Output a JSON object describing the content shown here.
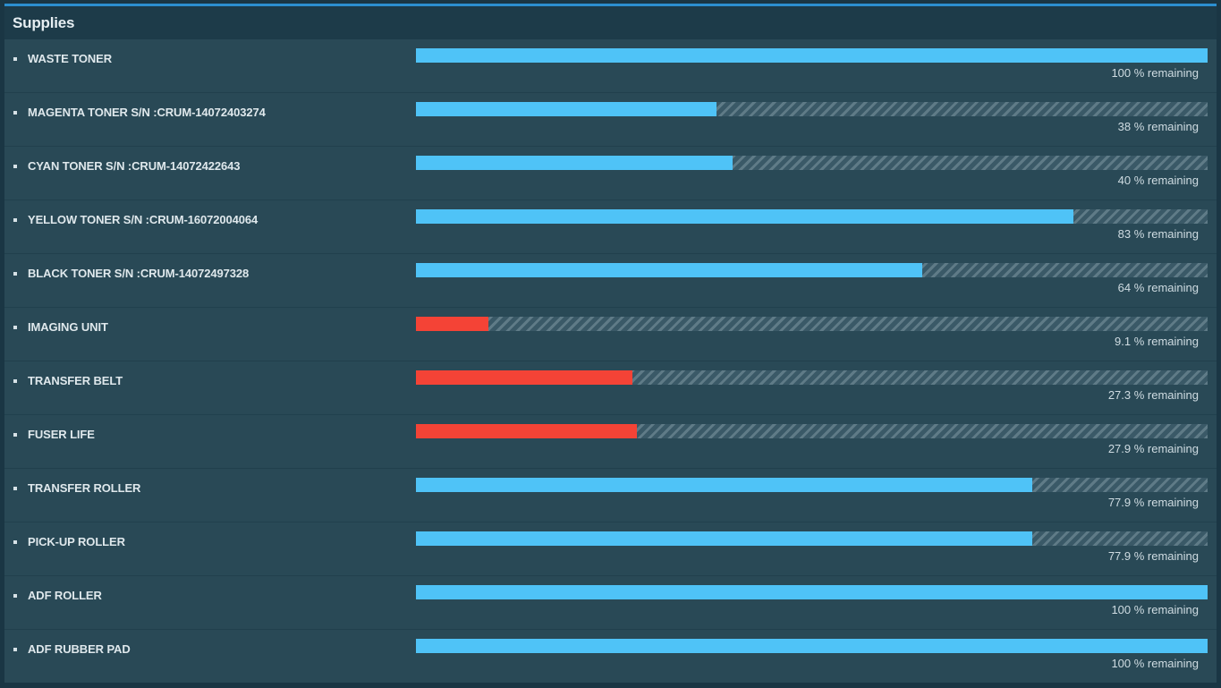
{
  "panel": {
    "title": "Supplies"
  },
  "colors": {
    "normal_fill": "#4fc3f7",
    "low_fill": "#f44336",
    "panel_bg": "#294956",
    "header_bg": "#1d3b49",
    "accent_border": "#2c8fd0"
  },
  "supplies": [
    {
      "name": "WASTE TONER",
      "percent": 100,
      "status": "normal",
      "remaining_text": "100 % remaining"
    },
    {
      "name": "MAGENTA TONER S/N :CRUM-14072403274",
      "percent": 38,
      "status": "normal",
      "remaining_text": "38 % remaining"
    },
    {
      "name": "CYAN TONER S/N :CRUM-14072422643",
      "percent": 40,
      "status": "normal",
      "remaining_text": "40 % remaining"
    },
    {
      "name": "YELLOW TONER S/N :CRUM-16072004064",
      "percent": 83,
      "status": "normal",
      "remaining_text": "83 % remaining"
    },
    {
      "name": "BLACK TONER S/N :CRUM-14072497328",
      "percent": 64,
      "status": "normal",
      "remaining_text": "64 % remaining"
    },
    {
      "name": "IMAGING UNIT",
      "percent": 9.1,
      "status": "low",
      "remaining_text": "9.1 % remaining"
    },
    {
      "name": "TRANSFER BELT",
      "percent": 27.3,
      "status": "low",
      "remaining_text": "27.3 % remaining"
    },
    {
      "name": "FUSER LIFE",
      "percent": 27.9,
      "status": "low",
      "remaining_text": "27.9 % remaining"
    },
    {
      "name": "TRANSFER ROLLER",
      "percent": 77.9,
      "status": "normal",
      "remaining_text": "77.9 % remaining"
    },
    {
      "name": "PICK-UP ROLLER",
      "percent": 77.9,
      "status": "normal",
      "remaining_text": "77.9 % remaining"
    },
    {
      "name": "ADF ROLLER",
      "percent": 100,
      "status": "normal",
      "remaining_text": "100 % remaining"
    },
    {
      "name": "ADF RUBBER PAD",
      "percent": 100,
      "status": "normal",
      "remaining_text": "100 % remaining"
    }
  ]
}
